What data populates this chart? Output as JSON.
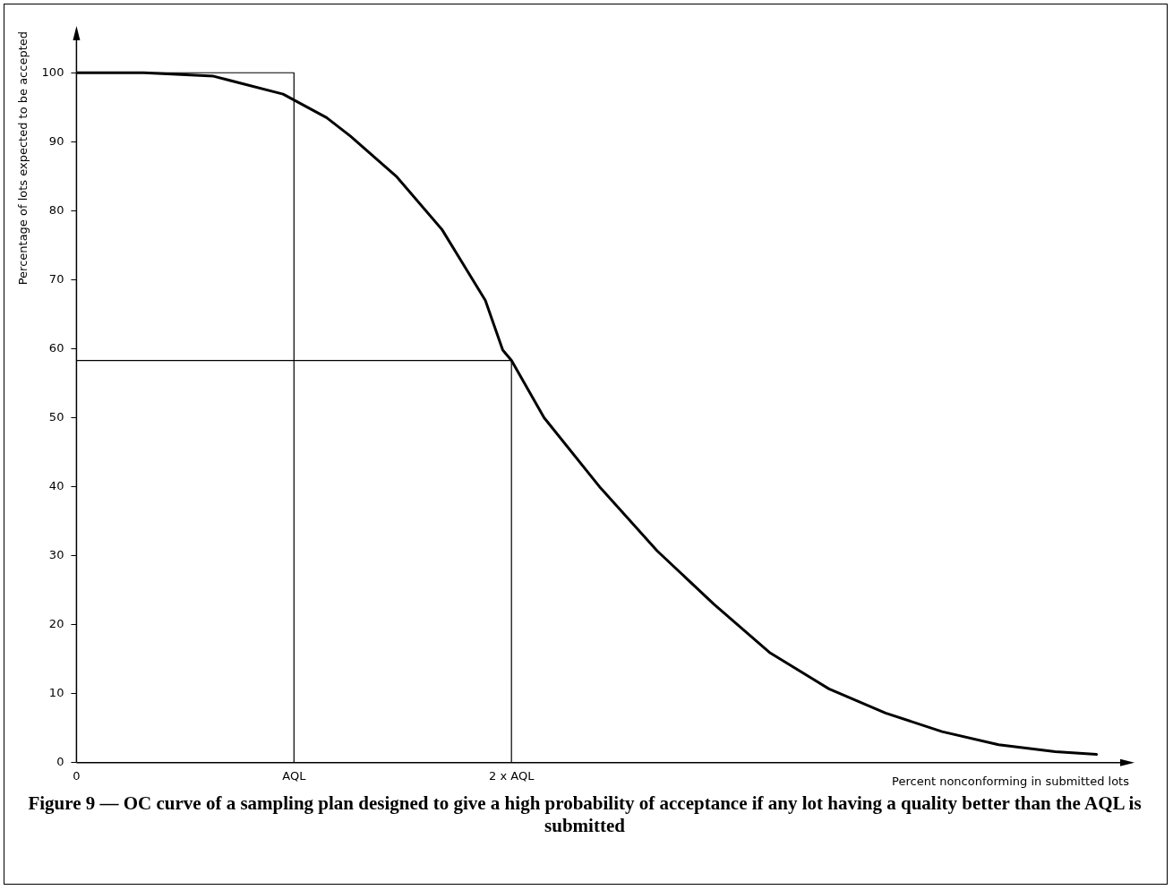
{
  "chart_data": {
    "type": "line",
    "title": "Figure 9 — OC curve of a sampling plan designed to give a high probability of acceptance if any lot having a quality better than the AQL is submitted",
    "xlabel": "Percent nonconforming in submitted lots",
    "ylabel": "Percentage of lots expected to be accepted",
    "xlim": [
      0,
      4.84
    ],
    "xticks": [
      0,
      {
        "value": 1,
        "label": "AQL"
      },
      {
        "value": 2,
        "label": "2 x AQL"
      }
    ],
    "ylim": [
      0,
      106
    ],
    "yticks": [
      0,
      10,
      20,
      30,
      40,
      50,
      60,
      70,
      80,
      90,
      100
    ],
    "grid": false,
    "marker": "none",
    "line_style": "solid",
    "series": [
      {
        "color": "#000000",
        "x": [
          0,
          0.31,
          0.63,
          0.95,
          1.15,
          1.26,
          1.47,
          1.68,
          1.88,
          1.96,
          2.0,
          2.15,
          2.41,
          2.67,
          2.93,
          3.19,
          3.46,
          3.72,
          3.98,
          4.24,
          4.5,
          4.69
        ],
        "values": [
          100,
          100,
          99.5,
          96.9,
          93.5,
          90.8,
          85,
          77.3,
          67,
          59.8,
          58.3,
          50,
          39.8,
          30.7,
          23,
          15.9,
          10.7,
          7.2,
          4.5,
          2.6,
          1.6,
          1.2
        ]
      },
      {
        "color": "#000000",
        "type": "line",
        "x": [
          0,
          1,
          1
        ],
        "values": [
          100,
          100,
          0
        ]
      },
      {
        "color": "#000000",
        "type": "line",
        "x": [
          0,
          2,
          2
        ],
        "values": [
          58.3,
          58.3,
          0
        ]
      }
    ]
  }
}
